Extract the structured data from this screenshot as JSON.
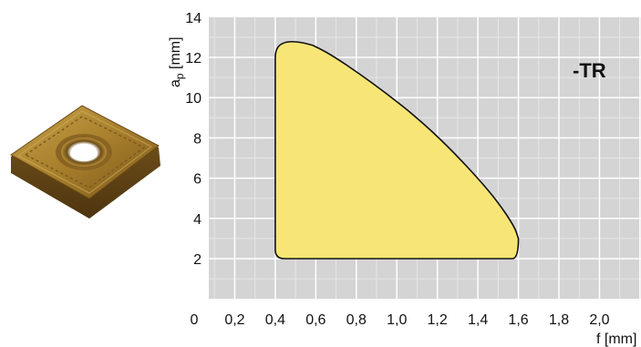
{
  "chart_data": {
    "type": "area",
    "title": "",
    "xlabel": "f [mm]",
    "ylabel": "ap [mm]",
    "ylabel_main": "a",
    "ylabel_sub": "p",
    "ylabel_unit": " [mm]",
    "xlim": [
      0,
      2.2
    ],
    "ylim": [
      0,
      14
    ],
    "x_ticks": [
      "0",
      "0,2",
      "0,4",
      "0,6",
      "0,8",
      "1,0",
      "1,2",
      "1,4",
      "1,6",
      "1,8",
      "2,0"
    ],
    "y_ticks": [
      "2",
      "4",
      "6",
      "8",
      "10",
      "12",
      "14"
    ],
    "grid": true,
    "legend": "none",
    "annotations": [
      {
        "text": "-TR"
      }
    ],
    "series": [
      {
        "region": "application-area",
        "boundary": [
          {
            "x": 0.4,
            "y": 2.0
          },
          {
            "x": 1.57,
            "y": 2.0
          },
          {
            "x": 1.6,
            "y": 3.0
          },
          {
            "x": 1.58,
            "y": 3.6
          },
          {
            "x": 1.5,
            "y": 4.8
          },
          {
            "x": 1.4,
            "y": 6.0
          },
          {
            "x": 1.25,
            "y": 7.6
          },
          {
            "x": 1.1,
            "y": 9.0
          },
          {
            "x": 0.95,
            "y": 10.2
          },
          {
            "x": 0.8,
            "y": 11.3
          },
          {
            "x": 0.65,
            "y": 12.3
          },
          {
            "x": 0.52,
            "y": 12.9
          },
          {
            "x": 0.45,
            "y": 13.0
          },
          {
            "x": 0.4,
            "y": 12.6
          },
          {
            "x": 0.4,
            "y": 2.0
          }
        ]
      }
    ],
    "colors": {
      "plot_background": "#d4d4d4",
      "grid_major": "#ffffff",
      "grid_minor": "#e6e6e6",
      "area_fill": "#f7e676",
      "area_stroke": "#111111"
    }
  },
  "insert_image": {
    "icon": "square-cutting-insert-icon",
    "colors": {
      "body": "#b08a2e",
      "body_dark": "#6f4f17",
      "hole": "#ffffff"
    }
  }
}
